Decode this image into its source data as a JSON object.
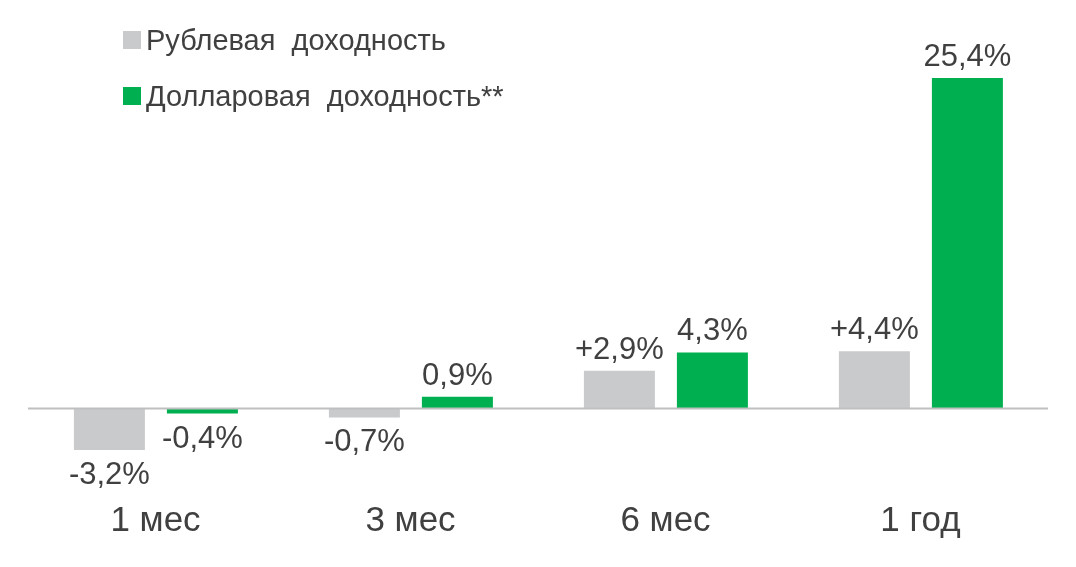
{
  "chart_data": {
    "type": "bar",
    "categories": [
      "1 мес",
      "3 мес",
      "6 мес",
      "1 год"
    ],
    "series": [
      {
        "name": "Рублевая  доходность",
        "color": "#c8cacc",
        "values": [
          -3.2,
          -0.7,
          2.9,
          4.4
        ],
        "value_labels": [
          "-3,2%",
          "-0,7%",
          "+2,9%",
          "+4,4%"
        ]
      },
      {
        "name": "Долларовая  доходность**",
        "color": "#00b050",
        "values": [
          -0.4,
          0.9,
          4.3,
          25.4
        ],
        "value_labels": [
          "-0,4%",
          "0,9%",
          "4,3%",
          "25,4%"
        ]
      }
    ],
    "legend": "top left"
  }
}
